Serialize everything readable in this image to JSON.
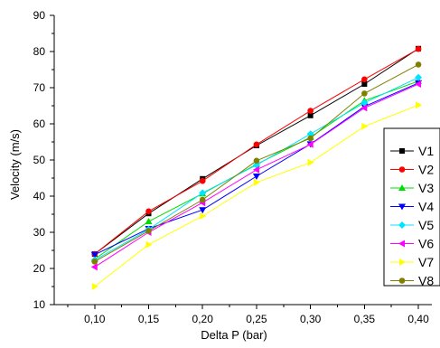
{
  "chart_data": {
    "type": "line",
    "title": "",
    "xlabel": "Delta P (bar)",
    "ylabel": "Velocity (m/s)",
    "x": [
      0.1,
      0.15,
      0.2,
      0.25,
      0.3,
      0.35,
      0.4
    ],
    "x_tick_labels": [
      "0,10",
      "0,15",
      "0,20",
      "0,25",
      "0,30",
      "0,35",
      "0,40"
    ],
    "y_ticks": [
      10,
      20,
      30,
      40,
      50,
      60,
      70,
      80,
      90
    ],
    "y_tick_labels": [
      "10",
      "20",
      "30",
      "40",
      "50",
      "60",
      "70",
      "80",
      "90"
    ],
    "xlim": [
      0.0625,
      0.4125
    ],
    "ylim": [
      10,
      90
    ],
    "grid": false,
    "legend_position": "right",
    "series": [
      {
        "name": "V1",
        "color": "#000000",
        "marker": "square",
        "values": [
          24.0,
          35.2,
          44.8,
          54.0,
          62.3,
          71.0,
          80.8
        ]
      },
      {
        "name": "V2",
        "color": "#ff0000",
        "marker": "circle",
        "values": [
          24.0,
          35.8,
          44.2,
          54.3,
          63.6,
          72.3,
          80.7
        ]
      },
      {
        "name": "V3",
        "color": "#00dd00",
        "marker": "triangle-up",
        "values": [
          22.6,
          33.0,
          40.7,
          48.8,
          56.3,
          66.4,
          71.8
        ]
      },
      {
        "name": "V4",
        "color": "#0000ff",
        "marker": "triangle-down",
        "values": [
          23.8,
          31.0,
          36.2,
          45.5,
          54.4,
          64.8,
          71.3
        ]
      },
      {
        "name": "V5",
        "color": "#00e5ff",
        "marker": "diamond",
        "values": [
          22.3,
          30.8,
          40.9,
          48.6,
          57.2,
          65.8,
          72.8
        ]
      },
      {
        "name": "V6",
        "color": "#ff00ff",
        "marker": "triangle-left",
        "values": [
          20.4,
          30.0,
          38.2,
          47.3,
          54.3,
          64.4,
          71.0
        ]
      },
      {
        "name": "V7",
        "color": "#ffff00",
        "marker": "triangle-right",
        "values": [
          15.0,
          26.6,
          34.5,
          43.8,
          49.3,
          59.3,
          65.2
        ]
      },
      {
        "name": "V8",
        "color": "#808000",
        "marker": "circle",
        "values": [
          21.9,
          30.4,
          39.0,
          49.8,
          56.0,
          68.4,
          76.4
        ]
      }
    ]
  }
}
